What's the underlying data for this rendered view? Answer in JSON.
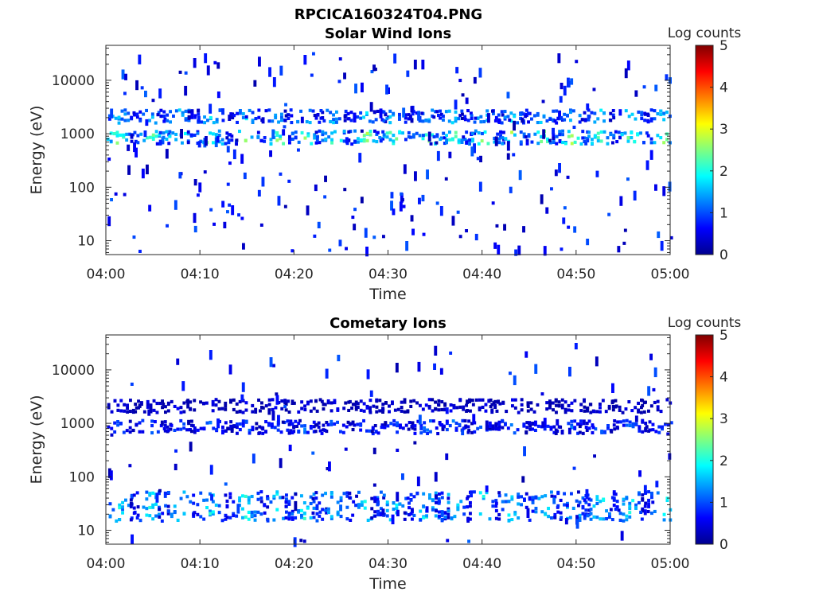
{
  "figure_title": "RPCICA160324T04.PNG",
  "chart_data": [
    {
      "type": "heatmap",
      "title": "Solar Wind Ions",
      "xlabel": "Time",
      "ylabel": "Energy (eV)",
      "x_ticks": [
        "04:00",
        "04:10",
        "04:20",
        "04:30",
        "04:40",
        "04:50",
        "05:00"
      ],
      "x_range": [
        "04:00",
        "05:00"
      ],
      "y_scale": "log",
      "y_ticks": [
        10,
        100,
        1000,
        10000
      ],
      "y_tick_labels": [
        "10",
        "100",
        "1000",
        "10000"
      ],
      "ylim": [
        5.5,
        45000
      ],
      "colorbar": {
        "label": "Log counts",
        "range": [
          0,
          5
        ],
        "ticks": [
          "0",
          "1",
          "2",
          "3",
          "4",
          "5"
        ],
        "colormap": "jet"
      },
      "bursts_minutes": [
        1.2,
        4.6,
        7.6,
        11.0,
        14.8,
        18.2,
        21.0,
        24.2,
        27.6,
        30.4,
        34.0,
        36.8,
        40.0,
        43.0,
        46.4,
        49.4,
        52.4,
        55.6,
        59.2
      ],
      "bands": [
        {
          "energy_ev": 850,
          "peak_log_counts": 2.6
        },
        {
          "energy_ev": 2100,
          "peak_log_counts": 1.8
        }
      ],
      "scatter_density": "medium"
    },
    {
      "type": "heatmap",
      "title": "Cometary Ions",
      "xlabel": "Time",
      "ylabel": "Energy (eV)",
      "x_ticks": [
        "04:00",
        "04:10",
        "04:20",
        "04:30",
        "04:40",
        "04:50",
        "05:00"
      ],
      "x_range": [
        "04:00",
        "05:00"
      ],
      "y_scale": "log",
      "y_ticks": [
        10,
        100,
        1000,
        10000
      ],
      "y_tick_labels": [
        "10",
        "100",
        "1000",
        "10000"
      ],
      "ylim": [
        5.5,
        45000
      ],
      "colorbar": {
        "label": "Log counts",
        "range": [
          0,
          5
        ],
        "ticks": [
          "0",
          "1",
          "2",
          "3",
          "4",
          "5"
        ],
        "colormap": "jet"
      },
      "bursts_minutes": [
        1.2,
        4.6,
        7.6,
        11.0,
        14.8,
        18.2,
        21.0,
        24.2,
        27.6,
        30.4,
        34.0,
        36.8,
        40.0,
        43.0,
        46.4,
        49.4,
        52.4,
        55.6,
        59.2
      ],
      "bands": [
        {
          "energy_ev": 850,
          "peak_log_counts": 1.2
        },
        {
          "energy_ev": 2100,
          "peak_log_counts": 0.6
        },
        {
          "energy_ev": 28,
          "peak_log_counts": 2.0
        }
      ],
      "scatter_density": "low"
    }
  ]
}
